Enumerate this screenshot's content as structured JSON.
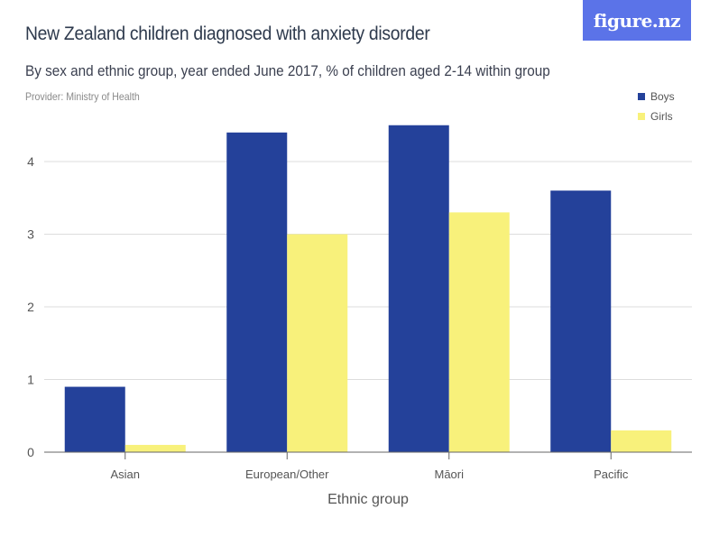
{
  "header": {
    "title": "New Zealand children diagnosed with anxiety disorder",
    "subtitle": "By sex and ethnic group, year ended June 2017, % of children aged 2-14 within group",
    "provider": "Provider: Ministry of Health",
    "logo": "figure.nz"
  },
  "colors": {
    "boys": "#24419a",
    "girls": "#f8f17b",
    "logo_bg": "#5b73e8",
    "grid": "#dddddd",
    "axis": "#666666"
  },
  "chart_data": {
    "type": "bar",
    "title": "New Zealand children diagnosed with anxiety disorder",
    "subtitle": "By sex and ethnic group, year ended June 2017, % of children aged 2-14 within group",
    "xlabel": "Ethnic group",
    "ylabel": "",
    "categories": [
      "Asian",
      "European/Other",
      "Māori",
      "Pacific"
    ],
    "series": [
      {
        "name": "Boys",
        "values": [
          0.9,
          4.4,
          4.5,
          3.6
        ]
      },
      {
        "name": "Girls",
        "values": [
          0.1,
          3.0,
          3.3,
          0.3
        ]
      }
    ],
    "ylim": [
      0,
      4.5
    ],
    "yticks": [
      0,
      1,
      2,
      3,
      4
    ],
    "grid": true,
    "legend": "top-right"
  }
}
